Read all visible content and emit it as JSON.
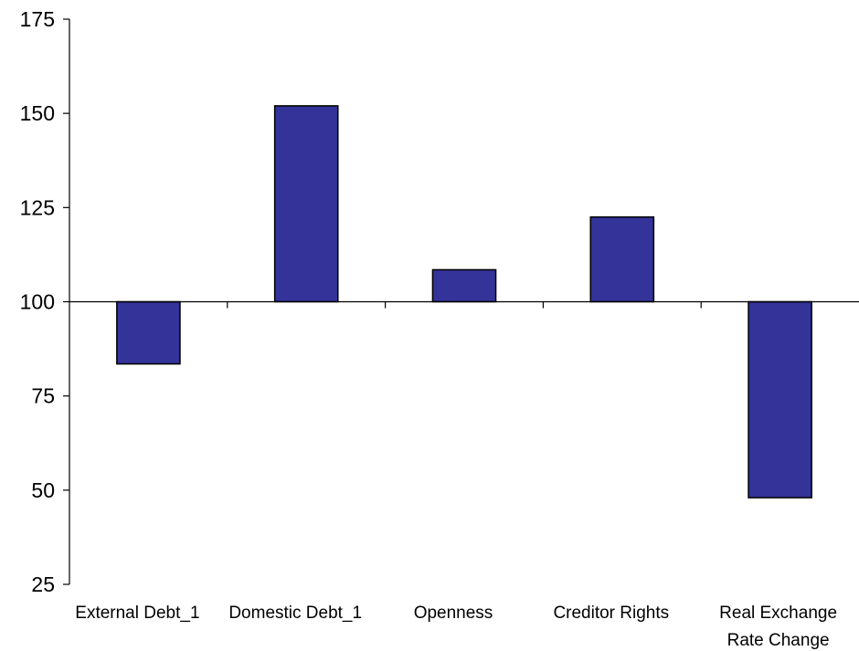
{
  "chart_data": {
    "type": "bar",
    "baseline": 100,
    "categories": [
      [
        "External Debt_1"
      ],
      [
        "Domestic Debt_1"
      ],
      [
        "Openness"
      ],
      [
        "Creditor Rights"
      ],
      [
        "Real Exchange",
        "Rate Change"
      ]
    ],
    "values": [
      83.5,
      152,
      108.5,
      122.5,
      48
    ],
    "ylim": [
      25,
      175
    ],
    "yticks": [
      25,
      50,
      75,
      100,
      125,
      150,
      175
    ],
    "grid": false,
    "legend": "none",
    "bar_color": "#333399",
    "bar_edge_color": "#000000"
  }
}
